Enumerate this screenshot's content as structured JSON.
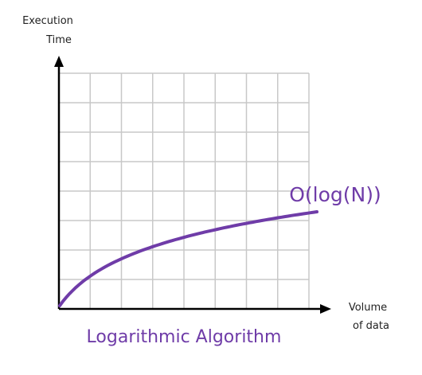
{
  "chart_data": {
    "type": "line",
    "title": "",
    "ylabel_lines": [
      "Execution",
      "Time"
    ],
    "xlabel_lines": [
      "Volume",
      "of data"
    ],
    "grid": true,
    "grid_cols": 8,
    "grid_rows": 8,
    "series": [
      {
        "name": "O(log(N))",
        "function": "log(N)",
        "color": "#6f3ca8"
      }
    ],
    "caption": "Logarithmic Algorithm"
  },
  "colors": {
    "accent": "#6f3ca8",
    "grid": "#c8c8c8",
    "axis": "#000000"
  }
}
